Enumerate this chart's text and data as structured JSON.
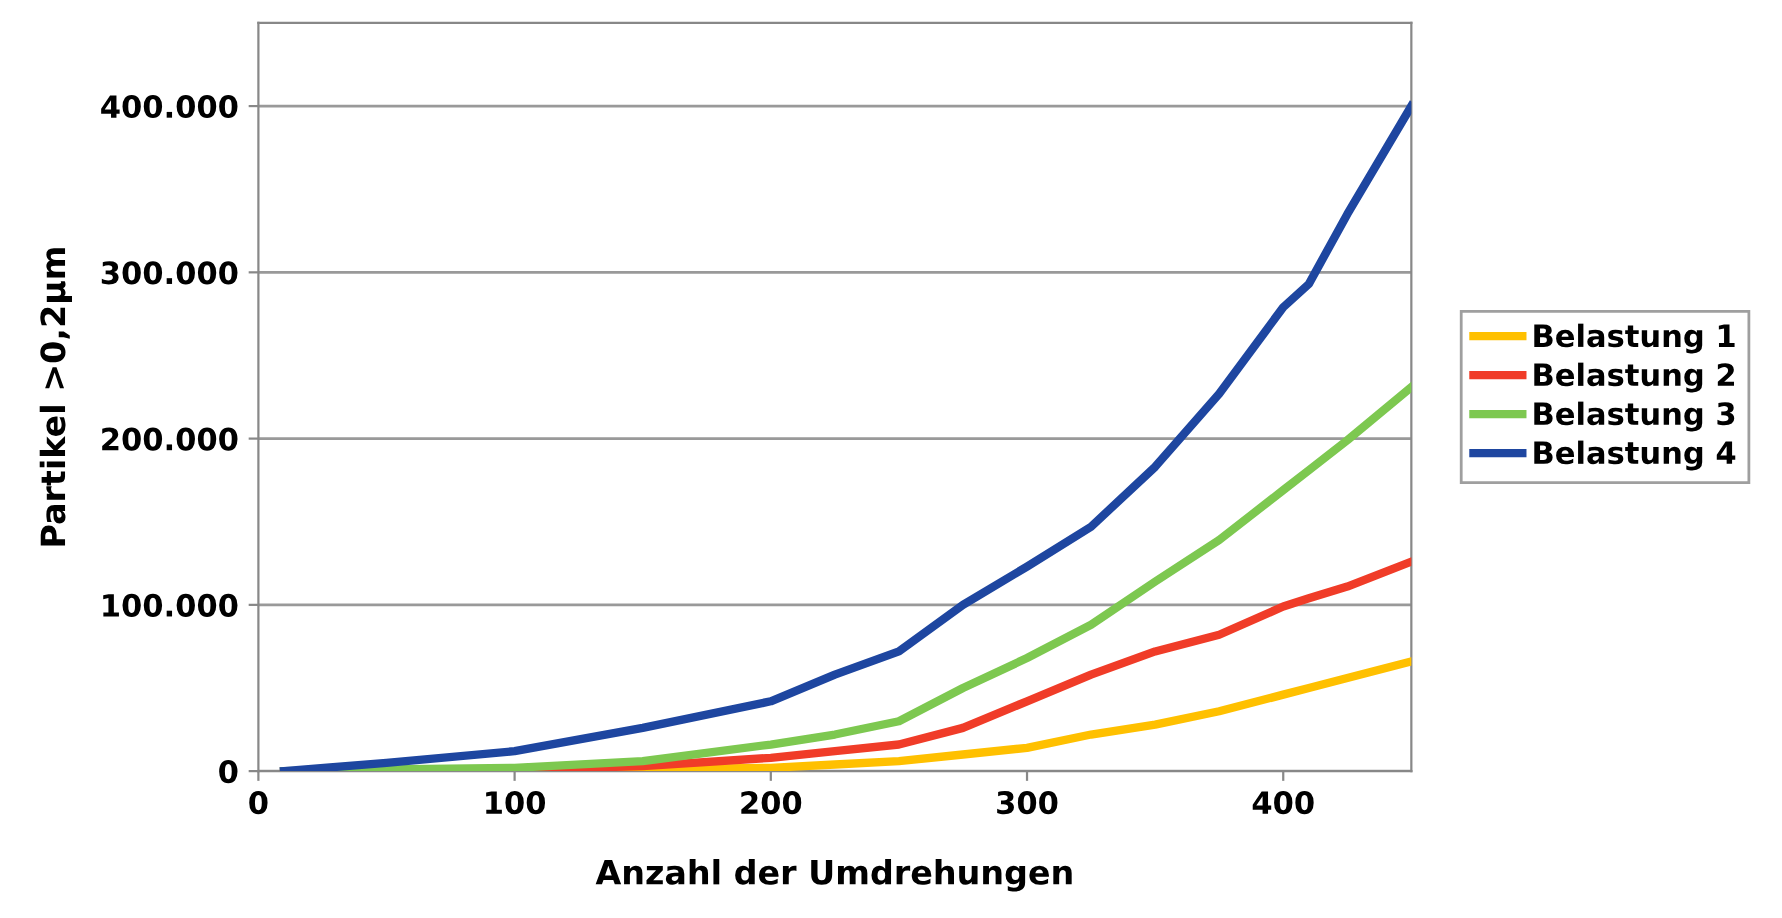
{
  "chart_data": {
    "type": "line",
    "xlabel": "Anzahl der Umdrehungen",
    "ylabel": "Partikel >0,2µm",
    "x": [
      10,
      50,
      100,
      150,
      200,
      225,
      250,
      275,
      300,
      325,
      350,
      375,
      400,
      410,
      425,
      450
    ],
    "series": [
      {
        "name": "Belastung 1",
        "color": "#ffc000",
        "values": [
          null,
          null,
          0,
          1000,
          2000,
          4000,
          6000,
          10000,
          14000,
          22000,
          28000,
          36000,
          46000,
          50000,
          56000,
          66000
        ]
      },
      {
        "name": "Belastung 2",
        "color": "#f03c28",
        "values": [
          0,
          0,
          1000,
          3000,
          8000,
          12000,
          16000,
          26000,
          42000,
          58000,
          72000,
          82000,
          99000,
          104000,
          111000,
          126000
        ]
      },
      {
        "name": "Belastung 3",
        "color": "#7dc850",
        "values": [
          0,
          1000,
          2000,
          6000,
          16000,
          22000,
          30000,
          50000,
          68000,
          88000,
          114000,
          139000,
          169000,
          181000,
          199000,
          231000
        ]
      },
      {
        "name": "Belastung 4",
        "color": "#1e46a0",
        "values": [
          0,
          5000,
          12000,
          26000,
          42000,
          58000,
          72000,
          100000,
          123000,
          147000,
          183000,
          227000,
          279000,
          293000,
          335000,
          400000
        ]
      }
    ],
    "xlim": [
      0,
      450
    ],
    "xticks": [
      0,
      100,
      200,
      300,
      400
    ],
    "ylim": [
      0,
      450000
    ],
    "yticks": [
      {
        "value": 0,
        "label": "0"
      },
      {
        "value": 100000,
        "label": "100.000"
      },
      {
        "value": 200000,
        "label": "200.000"
      },
      {
        "value": 300000,
        "label": "300.000"
      },
      {
        "value": 400000,
        "label": "400.000"
      }
    ],
    "grid": "y",
    "legend": "right",
    "marker": "none",
    "line_style": "solid"
  }
}
